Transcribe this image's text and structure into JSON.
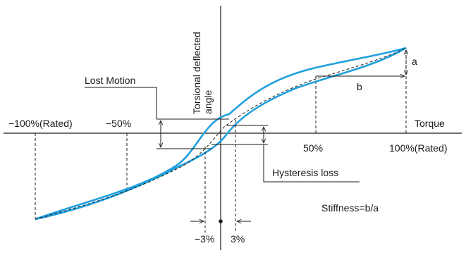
{
  "colors": {
    "curve": "#1ea0dc",
    "ink": "#1a1a1a"
  },
  "labels": {
    "y_axis_line1": "Torsional deflected",
    "y_axis_line2": "angle",
    "x_axis": "Torque",
    "neg_rated": "−100%(Rated)",
    "neg_half": "−50%",
    "pos_half": "50%",
    "pos_rated": "100%(Rated)",
    "lost_motion": "Lost Motion",
    "hysteresis_loss": "Hysteresis loss",
    "a": "a",
    "b": "b",
    "neg_three": "−3%",
    "pos_three": "3%",
    "stiffness": "Stiffness=b/a"
  }
}
